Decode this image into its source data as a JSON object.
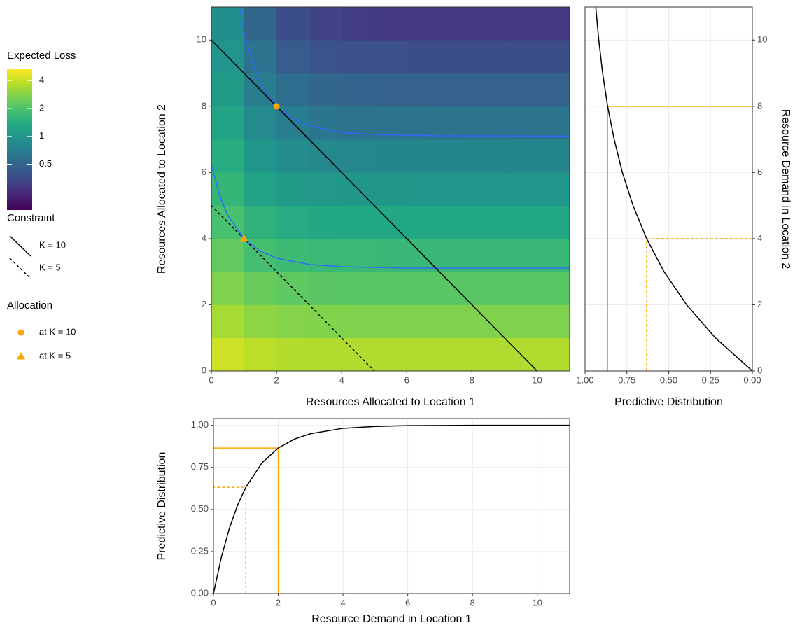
{
  "chart_data": [
    {
      "type": "heatmap",
      "xlabel": "Resources Allocated to Location 1",
      "ylabel": "Resources Allocated to Location 2",
      "xlim": [
        0,
        11
      ],
      "ylim": [
        0,
        11
      ],
      "xticks": [
        0,
        2,
        4,
        6,
        8,
        10
      ],
      "yticks": [
        0,
        2,
        4,
        6,
        8,
        10
      ],
      "grid": false,
      "x": [
        0.5,
        1.5,
        2.5,
        3.5,
        4.5,
        5.5,
        6.5,
        7.5,
        8.5,
        9.5,
        10.5
      ],
      "y": [
        0.5,
        1.5,
        2.5,
        3.5,
        4.5,
        5.5,
        6.5,
        7.5,
        8.5,
        9.5,
        10.5
      ],
      "z": [
        [
          4.14,
          3.75,
          3.61,
          3.56,
          3.54,
          3.53,
          3.53,
          3.53,
          3.53,
          3.53,
          3.53
        ],
        [
          3.36,
          2.97,
          2.83,
          2.78,
          2.76,
          2.75,
          2.75,
          2.75,
          2.75,
          2.75,
          2.75
        ],
        [
          2.75,
          2.36,
          2.22,
          2.17,
          2.15,
          2.15,
          2.14,
          2.14,
          2.14,
          2.14,
          2.14
        ],
        [
          2.28,
          1.89,
          1.75,
          1.7,
          1.68,
          1.67,
          1.67,
          1.67,
          1.67,
          1.67,
          1.67
        ],
        [
          1.91,
          1.52,
          1.38,
          1.33,
          1.31,
          1.3,
          1.3,
          1.3,
          1.3,
          1.3,
          1.3
        ],
        [
          1.62,
          1.23,
          1.09,
          1.04,
          1.02,
          1.02,
          1.01,
          1.01,
          1.01,
          1.01,
          1.01
        ],
        [
          1.4,
          1.01,
          0.87,
          0.82,
          0.8,
          0.79,
          0.79,
          0.79,
          0.79,
          0.79,
          0.79
        ],
        [
          1.22,
          0.84,
          0.7,
          0.64,
          0.62,
          0.62,
          0.62,
          0.61,
          0.61,
          0.61,
          0.61
        ],
        [
          1.09,
          0.7,
          0.56,
          0.51,
          0.49,
          0.48,
          0.48,
          0.48,
          0.48,
          0.48,
          0.48
        ],
        [
          0.98,
          0.6,
          0.45,
          0.4,
          0.38,
          0.38,
          0.37,
          0.37,
          0.37,
          0.37,
          0.37
        ],
        [
          0.9,
          0.51,
          0.37,
          0.32,
          0.3,
          0.29,
          0.29,
          0.29,
          0.29,
          0.29,
          0.29
        ]
      ],
      "colorscale": "viridis",
      "zlog": true,
      "zlim": [
        0.16,
        5.4
      ],
      "colorbar_title": "Expected Loss",
      "colorbar_ticks": [
        0.5,
        1,
        2,
        4
      ],
      "contours": [
        {
          "color": "#3366ff",
          "x": [
            0.865,
            1,
            1.25,
            1.5,
            2,
            2.5,
            3,
            4,
            5,
            7,
            11
          ],
          "y": [
            11,
            10.24,
            9.35,
            8.7,
            8,
            7.62,
            7.41,
            7.21,
            7.15,
            7.11,
            7.1
          ]
        },
        {
          "color": "#3366ff",
          "x": [
            0,
            0.25,
            0.5,
            1,
            1.5,
            2,
            3,
            4,
            6,
            11
          ],
          "y": [
            6.24,
            5.31,
            4.71,
            4,
            3.62,
            3.41,
            3.22,
            3.15,
            3.11,
            3.11
          ]
        }
      ],
      "constraint_title": "Constraint",
      "constraints": [
        {
          "name": "K = 10",
          "color": "#000000",
          "dash": "solid",
          "x": [
            0,
            10
          ],
          "y": [
            10,
            0
          ]
        },
        {
          "name": "K = 5",
          "color": "#000000",
          "dash": "dashed",
          "x": [
            0,
            5
          ],
          "y": [
            5,
            0
          ]
        }
      ],
      "allocation_title": "Allocation",
      "allocations": [
        {
          "name": "at K = 10",
          "shape": "circle",
          "color": "#ffa500",
          "x": 2,
          "y": 8
        },
        {
          "name": "at K = 5",
          "shape": "triangle",
          "color": "#ffa500",
          "x": 1,
          "y": 4
        }
      ]
    },
    {
      "type": "line",
      "xlabel": "Predictive Distribution",
      "ylabel": "Resource Demand in Location 2",
      "yaxis_side": "right",
      "xlim": [
        1,
        0
      ],
      "ylim": [
        0,
        11
      ],
      "xticks": [
        {
          "value": 1,
          "label": "1.00"
        },
        {
          "value": 0.75,
          "label": "0.75"
        },
        {
          "value": 0.5,
          "label": "0.50"
        },
        {
          "value": 0.25,
          "label": "0.25"
        },
        {
          "value": 0,
          "label": "0.00"
        }
      ],
      "yticks": [
        0,
        2,
        4,
        6,
        8,
        10
      ],
      "grid": true,
      "color": "#000000",
      "x": [
        0,
        0.221,
        0.393,
        0.528,
        0.632,
        0.713,
        0.777,
        0.826,
        0.865,
        0.895,
        0.918,
        0.936
      ],
      "y": [
        0,
        1,
        2,
        3,
        4,
        5,
        6,
        7,
        8,
        9,
        10,
        11
      ],
      "guides": [
        {
          "color": "#ffa500",
          "dash": "solid",
          "x": [
            0.865,
            0.865,
            0
          ],
          "y": [
            0,
            8,
            8
          ]
        },
        {
          "color": "#ffa500",
          "dash": "dashed",
          "x": [
            0.632,
            0.632,
            0
          ],
          "y": [
            0,
            4,
            4
          ]
        }
      ]
    },
    {
      "type": "line",
      "xlabel": "Resource Demand in Location 1",
      "ylabel": "Predictive Distribution",
      "yaxis_side": "left",
      "xlim": [
        0,
        11
      ],
      "ylim": [
        0,
        1.04
      ],
      "xticks": [
        0,
        2,
        4,
        6,
        8,
        10
      ],
      "yticks": [
        {
          "value": 0,
          "label": "0.00"
        },
        {
          "value": 0.25,
          "label": "0.25"
        },
        {
          "value": 0.5,
          "label": "0.50"
        },
        {
          "value": 0.75,
          "label": "0.75"
        },
        {
          "value": 1,
          "label": "1.00"
        }
      ],
      "grid": true,
      "color": "#000000",
      "x": [
        0,
        0.25,
        0.5,
        0.75,
        1,
        1.5,
        2,
        2.5,
        3,
        4,
        5,
        6,
        8,
        11
      ],
      "y": [
        0,
        0.221,
        0.393,
        0.528,
        0.632,
        0.777,
        0.865,
        0.918,
        0.95,
        0.982,
        0.993,
        0.998,
        1,
        1
      ],
      "guides": [
        {
          "color": "#ffa500",
          "dash": "solid",
          "x": [
            2,
            2,
            0
          ],
          "y": [
            0,
            0.865,
            0.865
          ]
        },
        {
          "color": "#ffa500",
          "dash": "dashed",
          "x": [
            1,
            1,
            0
          ],
          "y": [
            0,
            0.632,
            0.632
          ]
        }
      ]
    }
  ]
}
